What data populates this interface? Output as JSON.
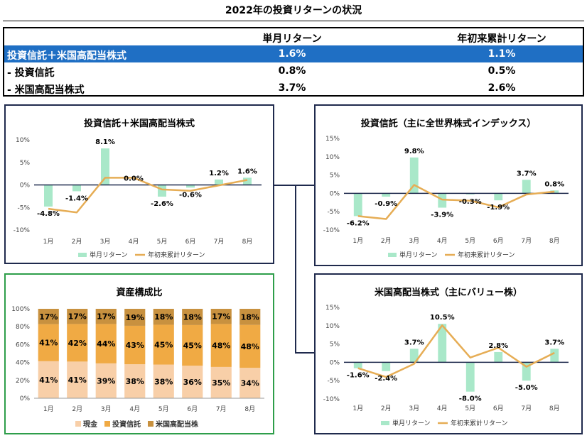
{
  "title": "2022年の投資リターンの状況",
  "summary": {
    "headers": [
      "単月リターン",
      "年初来累計リターン"
    ],
    "rows": [
      {
        "name": "投資信託＋米国高配当株式",
        "monthly": "1.6%",
        "ytd": "1.1%"
      },
      {
        "name": "- 投資信託",
        "monthly": "0.8%",
        "ytd": "0.5%"
      },
      {
        "name": "- 米国高配当株式",
        "monthly": "3.7%",
        "ytd": "2.6%"
      }
    ]
  },
  "colors": {
    "monthly_bar": "#a9e8c9",
    "ytd_line": "#e6ad55",
    "cash": "#f8cfa8",
    "fund": "#f0aa44",
    "stock": "#c8913f",
    "highlight": "#1f6fc4"
  },
  "chart_data": [
    {
      "type": "bar",
      "title": "投資信託＋米国高配当株式",
      "categories": [
        "1月",
        "2月",
        "3月",
        "4月",
        "5月",
        "6月",
        "7月",
        "8月"
      ],
      "yticks": [
        "10%",
        "5%",
        "0%",
        "-5%",
        "-10%"
      ],
      "ylim": [
        -10,
        10
      ],
      "data_labels": [
        "-4.8%",
        "-1.4%",
        "8.1%",
        "0.0%",
        "-2.6%",
        "-0.6%",
        "1.2%",
        "1.6%"
      ],
      "series": [
        {
          "name": "単月リターン",
          "type": "bar",
          "values": [
            -4.8,
            -1.4,
            8.1,
            0.0,
            -2.6,
            -0.6,
            1.2,
            1.6
          ]
        },
        {
          "name": "年初来累計リターン",
          "type": "line",
          "values": [
            -5.3,
            -6.1,
            1.6,
            1.6,
            -1.0,
            -1.3,
            -0.1,
            1.1
          ]
        }
      ]
    },
    {
      "type": "bar",
      "title": "投資信託（主に全世界株式インデックス）",
      "categories": [
        "1月",
        "2月",
        "3月",
        "4月",
        "5月",
        "6月",
        "7月",
        "8月"
      ],
      "yticks": [
        "15%",
        "10%",
        "5%",
        "0%",
        "-5%",
        "-10%"
      ],
      "ylim": [
        -10,
        15
      ],
      "data_labels": [
        "-6.2%",
        "-0.9%",
        "9.8%",
        "-3.9%",
        "-0.3%",
        "-1.9%",
        "3.7%",
        "0.8%"
      ],
      "series": [
        {
          "name": "単月リターン",
          "type": "bar",
          "values": [
            -6.2,
            -0.9,
            9.8,
            -3.9,
            -0.3,
            -1.9,
            3.7,
            0.8
          ]
        },
        {
          "name": "年初来累計リターン",
          "type": "line",
          "values": [
            -6.2,
            -7.0,
            2.3,
            -1.7,
            -2.0,
            -3.8,
            -0.3,
            0.5
          ]
        }
      ]
    },
    {
      "type": "stacked_bar",
      "title": "資産構成比",
      "categories": [
        "1月",
        "2月",
        "3月",
        "4月",
        "5月",
        "6月",
        "7月",
        "8月"
      ],
      "yticks": [
        "100%",
        "80%",
        "60%",
        "40%",
        "20%",
        "0%"
      ],
      "ylim": [
        0,
        100
      ],
      "series": [
        {
          "name": "現金",
          "values": [
            41,
            41,
            39,
            38,
            38,
            36,
            35,
            34
          ]
        },
        {
          "name": "投資信託",
          "values": [
            41,
            42,
            44,
            43,
            45,
            45,
            48,
            48
          ]
        },
        {
          "name": "米国高配当株",
          "values": [
            17,
            17,
            17,
            19,
            18,
            18,
            17,
            18
          ]
        }
      ]
    },
    {
      "type": "bar",
      "title": "米国高配当株式（主にバリュー株）",
      "categories": [
        "1月",
        "2月",
        "3月",
        "4月",
        "5月",
        "6月",
        "7月",
        "8月"
      ],
      "yticks": [
        "15%",
        "10%",
        "5%",
        "0%",
        "-5%",
        "-10%"
      ],
      "ylim": [
        -10,
        15
      ],
      "data_labels": [
        "-1.6%",
        "-2.4%",
        "3.7%",
        "10.5%",
        "-8.0%",
        "2.8%",
        "-5.0%",
        "3.7%"
      ],
      "series": [
        {
          "name": "単月リターン",
          "type": "bar",
          "values": [
            -1.6,
            -2.4,
            3.7,
            10.5,
            -8.0,
            2.8,
            -5.0,
            3.7
          ]
        },
        {
          "name": "年初来累計リターン",
          "type": "line",
          "values": [
            -1.6,
            -4.0,
            -0.4,
            10.1,
            1.3,
            4.0,
            -1.2,
            2.6
          ]
        }
      ]
    }
  ]
}
